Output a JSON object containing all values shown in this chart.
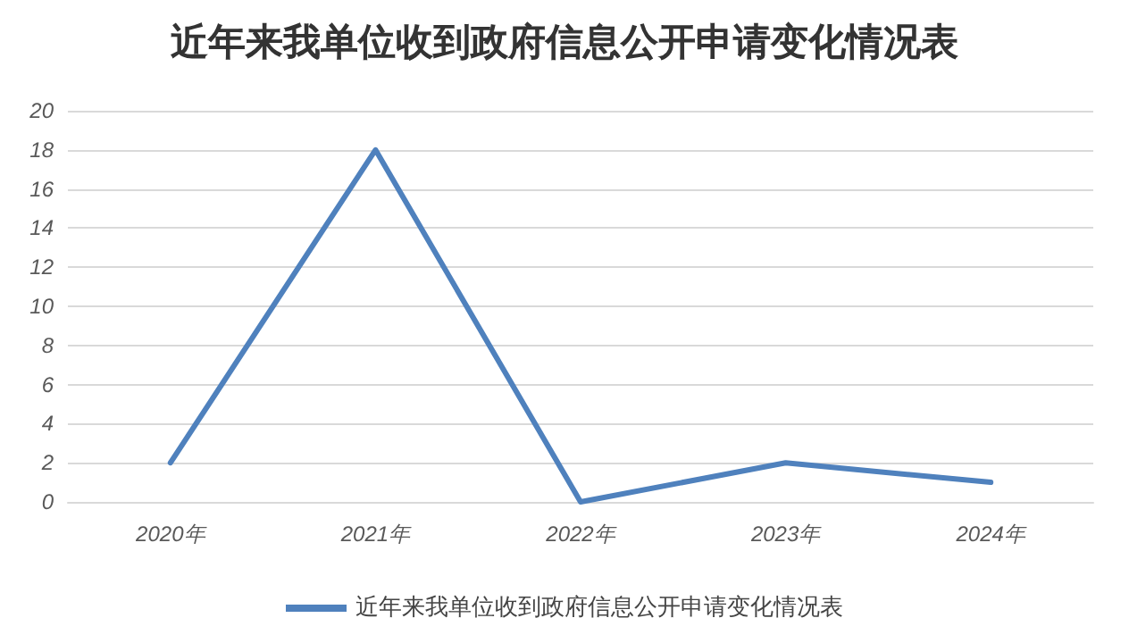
{
  "chart_data": {
    "type": "line",
    "title": "近年来我单位收到政府信息公开申请变化情况表",
    "categories": [
      "2020年",
      "2021年",
      "2022年",
      "2023年",
      "2024年"
    ],
    "series": [
      {
        "name": "近年来我单位收到政府信息公开申请变化情况表",
        "color": "#4f81bd",
        "values": [
          2,
          18,
          0,
          2,
          1
        ]
      }
    ],
    "ylim": [
      0,
      20
    ],
    "yticks": [
      0,
      2,
      4,
      6,
      8,
      10,
      12,
      14,
      16,
      18,
      20
    ],
    "grid": "y",
    "legend": "bottom",
    "marker": "none",
    "line_style": "solid"
  }
}
